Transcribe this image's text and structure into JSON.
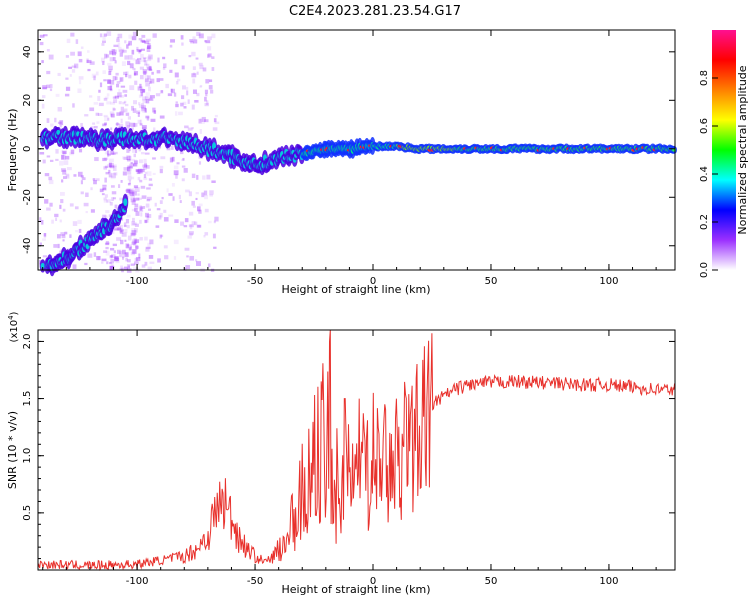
{
  "title": "C2E4.2023.281.23.54.G17",
  "chart_data": [
    {
      "type": "heatmap",
      "xlabel": "Height of straight line (km)",
      "ylabel": "Frequency (Hz)",
      "xlim": [
        -142,
        128
      ],
      "ylim": [
        -50,
        49
      ],
      "xticks": [
        -100,
        -50,
        0,
        50,
        100
      ],
      "yticks": [
        -40,
        -20,
        0,
        20,
        40
      ],
      "colorbar": {
        "label": "Normalized spectral amplitude",
        "range": [
          0,
          1
        ],
        "ticks": [
          "0.0",
          "0.2",
          "0.4",
          "0.6",
          "0.8"
        ],
        "colors": [
          "#ffffff",
          "#9b30ff",
          "#0000ff",
          "#00ffff",
          "#00ff00",
          "#ffff00",
          "#ff8000",
          "#ff0000",
          "#ff1090"
        ]
      },
      "ridges": [
        {
          "name": "",
          "x": [
            -140,
            -130,
            -120,
            -110,
            -100,
            -90,
            -80,
            -70,
            -60,
            -50,
            -40,
            -30,
            -20,
            -10,
            0,
            10,
            20,
            40,
            60,
            80,
            100,
            128
          ],
          "y": [
            5,
            5,
            4,
            4,
            4,
            4,
            3,
            0,
            -3,
            -7,
            -4,
            -2,
            0,
            0,
            1,
            1,
            0,
            0,
            0,
            0,
            0,
            0
          ]
        },
        {
          "name": "",
          "x": [
            -140,
            -130,
            -120,
            -110,
            -105
          ],
          "y": [
            -50,
            -45,
            -38,
            -30,
            -24
          ]
        }
      ]
    },
    {
      "type": "line",
      "xlabel": "Height of straight line (km)",
      "ylabel": "SNR (10 * v/v)",
      "yscale_label": "(x10^4)",
      "xlim": [
        -142,
        128
      ],
      "ylim": [
        0,
        2.1
      ],
      "xticks": [
        -100,
        -50,
        0,
        50,
        100
      ],
      "yticks": [
        "0.5",
        "1.0",
        "1.5",
        "2.0"
      ],
      "line_color": "#e8312c",
      "series": [
        {
          "name": "",
          "x": [
            -142,
            -120,
            -100,
            -80,
            -75,
            -70,
            -66,
            -63,
            -60,
            -57,
            -54,
            -50,
            -46,
            -43,
            -40,
            -37,
            -34,
            -31,
            -28,
            -25,
            -22,
            -19,
            -16,
            -13,
            -10,
            -7,
            -4,
            -1,
            2,
            5,
            8,
            11,
            14,
            17,
            20,
            25,
            30,
            35,
            40,
            50,
            60,
            70,
            80,
            90,
            100,
            110,
            120,
            128
          ],
          "y": [
            0.05,
            0.04,
            0.05,
            0.12,
            0.18,
            0.3,
            0.55,
            0.6,
            0.45,
            0.3,
            0.2,
            0.12,
            0.07,
            0.1,
            0.2,
            0.3,
            0.5,
            0.65,
            0.8,
            0.9,
            1.0,
            1.4,
            0.75,
            0.85,
            0.9,
            0.95,
            0.95,
            0.97,
            1.0,
            1.02,
            1.05,
            1.1,
            1.15,
            1.2,
            1.3,
            1.45,
            1.52,
            1.58,
            1.62,
            1.64,
            1.65,
            1.64,
            1.63,
            1.62,
            1.62,
            1.6,
            1.58,
            1.58
          ]
        }
      ],
      "spikes": [
        {
          "x": -18,
          "y": 2.1
        },
        {
          "x": -22,
          "y": 1.65
        },
        {
          "x": -12,
          "y": 1.5
        },
        {
          "x": -6,
          "y": 1.5
        },
        {
          "x": 0,
          "y": 1.55
        },
        {
          "x": 5,
          "y": 1.45
        },
        {
          "x": 10,
          "y": 1.5
        },
        {
          "x": 14,
          "y": 1.5
        }
      ]
    }
  ]
}
